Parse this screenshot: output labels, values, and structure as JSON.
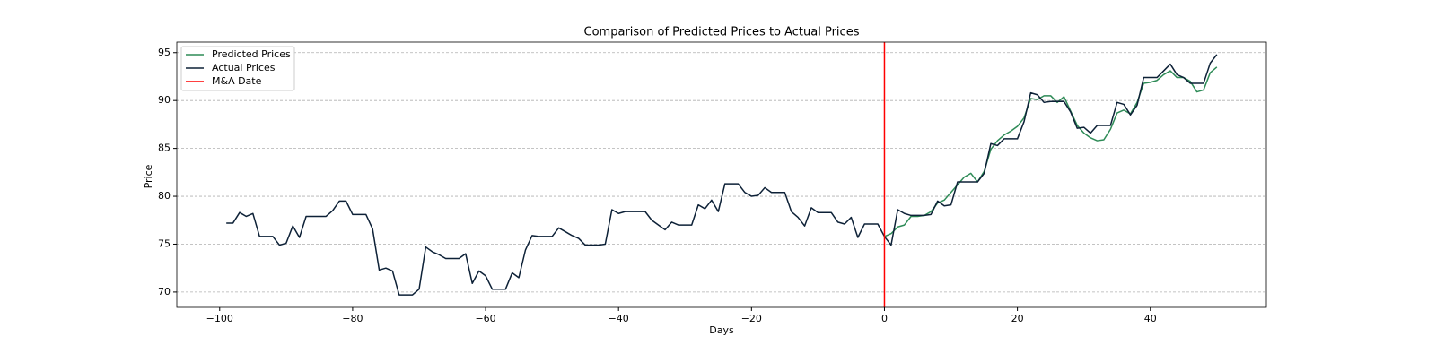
{
  "chart_data": {
    "type": "line",
    "title": "Comparison of Predicted Prices to Actual Prices",
    "x_label": "Days",
    "y_label": "Price",
    "series": [
      {
        "name": "Predicted Prices",
        "color": "#2e8b57",
        "x": [
          0,
          1,
          2,
          3,
          4,
          5,
          6,
          7,
          8,
          9,
          10,
          11,
          12,
          13,
          14,
          15,
          16,
          17,
          18,
          19,
          20,
          21,
          22,
          23,
          24,
          25,
          26,
          27,
          28,
          29,
          30,
          31,
          32,
          33,
          34,
          35,
          36,
          37,
          38,
          39,
          40,
          41,
          42,
          43,
          44,
          45,
          46,
          47,
          48,
          49,
          50
        ],
        "values": [
          75.8,
          76.1,
          76.8,
          77.0,
          77.9,
          77.9,
          78.0,
          78.4,
          79.3,
          79.6,
          80.4,
          81.2,
          82.0,
          82.4,
          81.5,
          82.6,
          84.9,
          85.8,
          86.4,
          86.8,
          87.3,
          88.2,
          90.2,
          90.1,
          90.5,
          90.5,
          89.8,
          90.4,
          88.9,
          87.4,
          86.6,
          86.1,
          85.8,
          85.9,
          87.0,
          88.7,
          89.0,
          88.6,
          89.8,
          91.8,
          91.9,
          92.1,
          92.7,
          93.1,
          92.4,
          92.4,
          92.0,
          90.9,
          91.1,
          92.9,
          93.5
        ]
      },
      {
        "name": "Actual Prices",
        "color": "#0d2137",
        "x": [
          -99,
          -98,
          -97,
          -96,
          -95,
          -94,
          -93,
          -92,
          -91,
          -90,
          -89,
          -88,
          -87,
          -86,
          -85,
          -84,
          -83,
          -82,
          -81,
          -80,
          -79,
          -78,
          -77,
          -76,
          -75,
          -74,
          -73,
          -72,
          -71,
          -70,
          -69,
          -68,
          -67,
          -66,
          -65,
          -64,
          -63,
          -62,
          -61,
          -60,
          -59,
          -58,
          -57,
          -56,
          -55,
          -54,
          -53,
          -52,
          -51,
          -50,
          -49,
          -48,
          -47,
          -46,
          -45,
          -44,
          -43,
          -42,
          -41,
          -40,
          -39,
          -38,
          -37,
          -36,
          -35,
          -34,
          -33,
          -32,
          -31,
          -30,
          -29,
          -28,
          -27,
          -26,
          -25,
          -24,
          -23,
          -22,
          -21,
          -20,
          -19,
          -18,
          -17,
          -16,
          -15,
          -14,
          -13,
          -12,
          -11,
          -10,
          -9,
          -8,
          -7,
          -6,
          -5,
          -4,
          -3,
          -2,
          -1,
          0,
          1,
          2,
          3,
          4,
          5,
          6,
          7,
          8,
          9,
          10,
          11,
          12,
          13,
          14,
          15,
          16,
          17,
          18,
          19,
          20,
          21,
          22,
          23,
          24,
          25,
          26,
          27,
          28,
          29,
          30,
          31,
          32,
          33,
          34,
          35,
          36,
          37,
          38,
          39,
          40,
          41,
          42,
          43,
          44,
          45,
          46,
          47,
          48,
          49,
          50
        ],
        "values": [
          77.2,
          77.2,
          78.3,
          77.9,
          78.2,
          75.8,
          75.8,
          75.8,
          74.9,
          75.1,
          76.9,
          75.7,
          77.9,
          77.9,
          77.9,
          77.9,
          78.5,
          79.5,
          79.5,
          78.1,
          78.1,
          78.1,
          76.6,
          72.3,
          72.5,
          72.2,
          69.7,
          69.7,
          69.7,
          70.3,
          74.7,
          74.2,
          73.9,
          73.5,
          73.5,
          73.5,
          74.0,
          70.9,
          72.2,
          71.7,
          70.3,
          70.3,
          70.3,
          72.0,
          71.5,
          74.4,
          75.9,
          75.8,
          75.8,
          75.8,
          76.7,
          76.3,
          75.9,
          75.6,
          74.9,
          74.9,
          74.9,
          75.0,
          78.6,
          78.2,
          78.4,
          78.4,
          78.4,
          78.4,
          77.5,
          77.0,
          76.5,
          77.3,
          77.0,
          77.0,
          77.0,
          79.1,
          78.7,
          79.6,
          78.4,
          81.3,
          81.3,
          81.3,
          80.4,
          80.0,
          80.1,
          80.9,
          80.4,
          80.4,
          80.4,
          78.4,
          77.8,
          76.9,
          78.8,
          78.3,
          78.3,
          78.3,
          77.3,
          77.1,
          77.8,
          75.7,
          77.1,
          77.1,
          77.1,
          75.8,
          74.9,
          78.6,
          78.2,
          78.0,
          78.0,
          78.0,
          78.1,
          79.5,
          79.0,
          79.1,
          81.5,
          81.5,
          81.5,
          81.5,
          82.4,
          85.5,
          85.3,
          86.0,
          86.0,
          86.0,
          87.8,
          90.8,
          90.6,
          89.8,
          89.9,
          89.9,
          89.9,
          88.8,
          87.1,
          87.2,
          86.6,
          87.4,
          87.4,
          87.4,
          89.8,
          89.6,
          88.5,
          89.5,
          92.4,
          92.4,
          92.4,
          93.1,
          93.8,
          92.7,
          92.4,
          91.8,
          91.8,
          91.8,
          93.9,
          94.8
        ]
      }
    ],
    "vline": {
      "name": "M&A Date",
      "x": 0,
      "color": "#ff0000"
    },
    "xlim": [
      -106.45,
      57.45
    ],
    "xticks": [
      {
        "value": -100,
        "label": "−100"
      },
      {
        "value": -80,
        "label": "−80"
      },
      {
        "value": -60,
        "label": "−60"
      },
      {
        "value": -40,
        "label": "−40"
      },
      {
        "value": -20,
        "label": "−20"
      },
      0,
      20,
      40
    ],
    "ylim": [
      68.4,
      96.1
    ],
    "yticks": [
      70,
      75,
      80,
      85,
      90,
      95
    ],
    "grid": "y",
    "legend": "upper left"
  }
}
